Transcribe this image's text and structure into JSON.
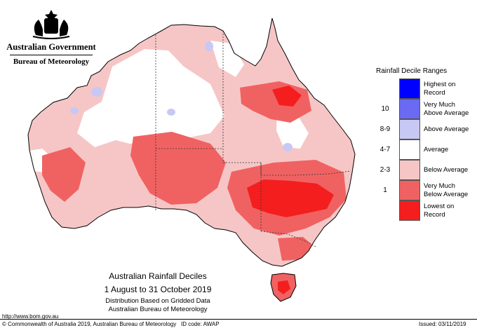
{
  "header": {
    "government": "Australian Government",
    "bureau": "Bureau of Meteorology"
  },
  "map": {
    "subject": "Rainfall Deciles",
    "region": "Australia"
  },
  "legend": {
    "title": "Rainfall Decile Ranges",
    "items": [
      {
        "rank": "",
        "label": "Highest on Record",
        "color": "#0000ff"
      },
      {
        "rank": "10",
        "label": "Very Much Above Average",
        "color": "#6a6af2"
      },
      {
        "rank": "8-9",
        "label": "Above Average",
        "color": "#c8c8f4"
      },
      {
        "rank": "4-7",
        "label": "Average",
        "color": "#ffffff"
      },
      {
        "rank": "2-3",
        "label": "Below Average",
        "color": "#f6c6c6"
      },
      {
        "rank": "1",
        "label": "Very Much Below Average",
        "color": "#f06262"
      },
      {
        "rank": "",
        "label": "Lowest on Record",
        "color": "#f41e1e"
      }
    ]
  },
  "titles": {
    "line1": "Australian Rainfall Deciles",
    "line2": "1 August to 31 October 2019",
    "line3": "Distribution Based on Gridded Data",
    "line4": "Australian Bureau of Meteorology"
  },
  "url": "http://www.bom.gov.au",
  "footer": {
    "copyright": "© Commonwealth of Australia 2019, Australian Bureau of Meteorology",
    "id_code": "ID code: AWAP",
    "issued": "Issued: 03/11/2019"
  }
}
